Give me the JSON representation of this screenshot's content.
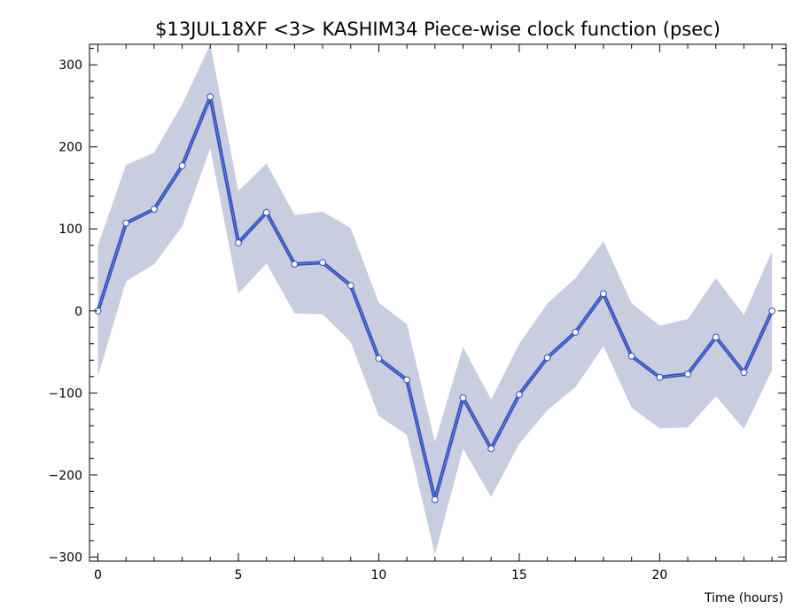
{
  "chart_data": {
    "type": "line",
    "title": "$13JUL18XF <3>  KASHIM34  Piece-wise clock function (psec)",
    "xlabel": "Time (hours)",
    "ylabel": "",
    "xlim": [
      -0.3,
      24.5
    ],
    "ylim": [
      -305,
      325
    ],
    "xticks": [
      0,
      5,
      10,
      15,
      20
    ],
    "yticks": [
      -300,
      -200,
      -100,
      0,
      100,
      200,
      300
    ],
    "xtick_labels": [
      "0",
      "5",
      "10",
      "15",
      "20"
    ],
    "ytick_labels": [
      "−300",
      "−200",
      "−100",
      "0",
      "100",
      "200",
      "300"
    ],
    "grid": false,
    "legend": "none",
    "colors": {
      "line": "#2e4fbf",
      "band": "#c8cde0",
      "marker_fill": "#ffffff",
      "axis": "#000000"
    },
    "series": [
      {
        "x": [
          0,
          1,
          2,
          3,
          4,
          5,
          6,
          7,
          8,
          9,
          10,
          11,
          12,
          13,
          14,
          15,
          16,
          17,
          18,
          19,
          20,
          21,
          22,
          23,
          24
        ],
        "values": [
          0,
          107,
          124,
          177,
          261,
          83,
          120,
          57,
          59,
          31,
          -58,
          -84,
          -230,
          -106,
          -168,
          -102,
          -57,
          -26,
          21,
          -55,
          -81,
          -77,
          -32,
          -75,
          0
        ],
        "upper": [
          80,
          178,
          193,
          252,
          325,
          146,
          180,
          117,
          121,
          101,
          10,
          -16,
          -160,
          -44,
          -108,
          -40,
          9,
          40,
          85,
          9,
          -18,
          -10,
          40,
          -5,
          73
        ],
        "lower": [
          -80,
          36,
          57,
          103,
          198,
          21,
          58,
          -3,
          -4,
          -38,
          -128,
          -151,
          -297,
          -168,
          -227,
          -162,
          -121,
          -93,
          -43,
          -118,
          -143,
          -142,
          -104,
          -144,
          -72
        ]
      }
    ]
  }
}
